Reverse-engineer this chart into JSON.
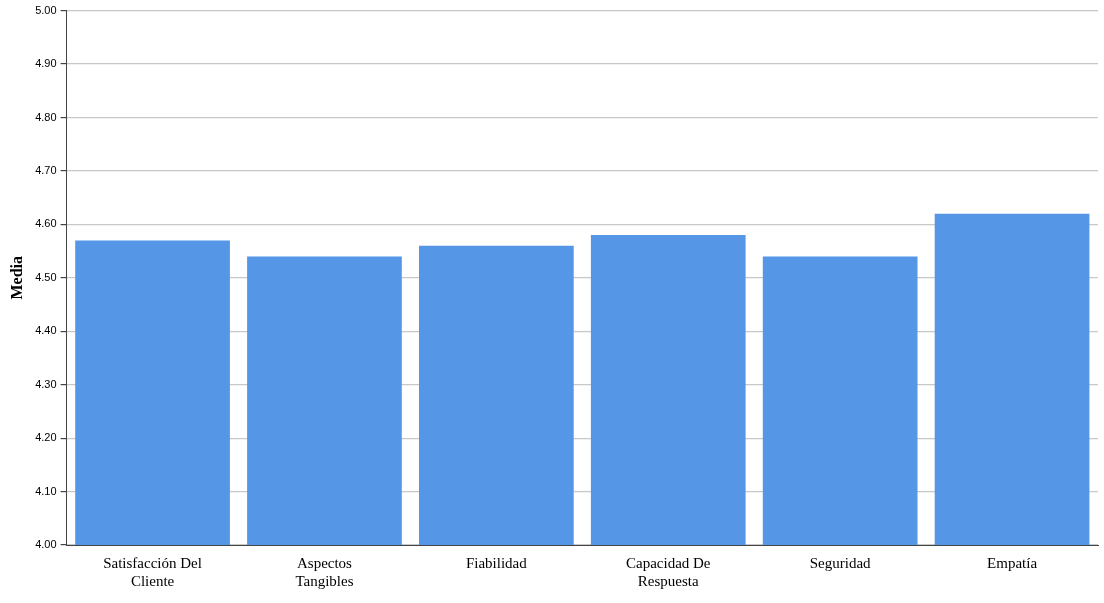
{
  "chart_data": {
    "type": "bar",
    "ylabel": "Media",
    "categories": [
      "Satisfacción Del Cliente",
      "Aspectos Tangibles",
      "Fiabilidad",
      "Capacidad De Respuesta",
      "Seguridad",
      "Empatía"
    ],
    "values": [
      4.57,
      4.54,
      4.56,
      4.58,
      4.54,
      4.62
    ],
    "color": "#5596e6",
    "ylim": [
      4.0,
      5.0
    ],
    "yticks": [
      {
        "value": 4.0,
        "label": "4.00"
      },
      {
        "value": 4.1,
        "label": "4.10"
      },
      {
        "value": 4.2,
        "label": "4.20"
      },
      {
        "value": 4.3,
        "label": "4.30"
      },
      {
        "value": 4.4,
        "label": "4.40"
      },
      {
        "value": 4.5,
        "label": "4.50"
      },
      {
        "value": 4.6,
        "label": "4.60"
      },
      {
        "value": 4.7,
        "label": "4.70"
      },
      {
        "value": 4.8,
        "label": "4.80"
      },
      {
        "value": 4.9,
        "label": "4.90"
      },
      {
        "value": 5.0,
        "label": "5.00"
      }
    ],
    "grid": "y",
    "legend": false
  }
}
